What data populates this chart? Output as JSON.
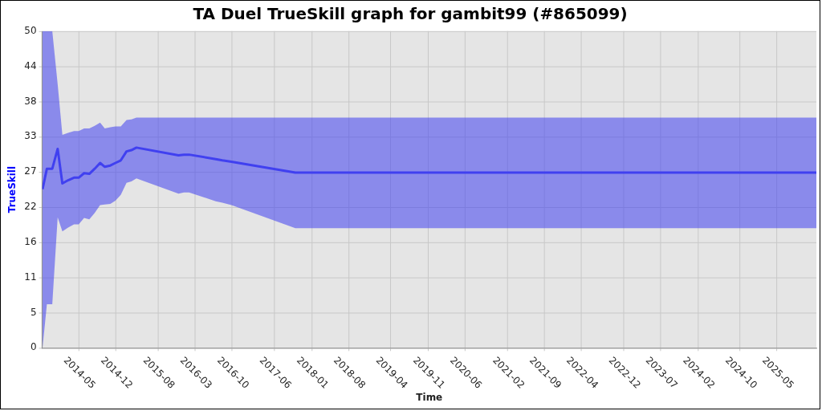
{
  "chart_data": {
    "type": "line",
    "title": "TA Duel TrueSkill graph for gambit99 (#865099)",
    "xlabel": "Time",
    "ylabel": "TrueSkill",
    "x": [
      "2013-10-06",
      "2013-10-31",
      "2013-12-01",
      "2014-01-01",
      "2014-01-28",
      "2014-03-02",
      "2014-04-05",
      "2014-05-02",
      "2014-06-02",
      "2014-07-02",
      "2014-08-02",
      "2014-09-02",
      "2014-09-29",
      "2014-10-31",
      "2014-11-29",
      "2014-12-30",
      "2015-02-01",
      "2015-03-01",
      "2015-03-30",
      "2015-11-27",
      "2015-12-28",
      "2016-01-27",
      "2016-06-28",
      "2016-08-05",
      "2016-09-27",
      "2017-09-29",
      "2025-12-13"
    ],
    "series": [
      {
        "color": "#4040f0",
        "values": [
          24.8,
          28.0,
          28.0,
          31.1,
          25.7,
          26.2,
          26.6,
          26.6,
          27.3,
          27.2,
          28.0,
          28.9,
          28.3,
          28.5,
          28.9,
          29.3,
          30.7,
          30.9,
          31.3,
          30.1,
          30.2,
          30.2,
          29.5,
          29.3,
          29.1,
          27.4,
          27.4
        ],
        "upper": [
          49.5,
          49.5,
          49.5,
          41.2,
          33.3,
          33.6,
          33.9,
          33.9,
          34.3,
          34.3,
          34.7,
          35.2,
          34.3,
          34.5,
          34.6,
          34.6,
          35.6,
          35.7,
          36.0,
          36.0,
          36.0,
          36.0,
          36.0,
          36.0,
          36.0,
          36.0,
          36.0
        ],
        "lower": [
          0,
          6.8,
          6.8,
          20.4,
          18.2,
          18.8,
          19.3,
          19.3,
          20.3,
          20.1,
          21.1,
          22.3,
          22.4,
          22.5,
          23.0,
          23.9,
          25.8,
          26.0,
          26.5,
          24.1,
          24.3,
          24.3,
          22.9,
          22.7,
          22.3,
          18.7,
          18.7
        ]
      }
    ],
    "xlim": [
      "2013-10-04",
      "2025-12-13"
    ],
    "xticks": [
      "2014-05",
      "2014-12",
      "2015-08",
      "2016-03",
      "2016-10",
      "2017-06",
      "2018-01",
      "2018-08",
      "2019-04",
      "2019-11",
      "2020-06",
      "2021-02",
      "2021-09",
      "2022-04",
      "2022-12",
      "2023-07",
      "2024-02",
      "2024-10",
      "2025-05"
    ],
    "ylim": [
      0,
      49.5
    ],
    "yticks": [
      0,
      {
        "value": 5.5,
        "label": "5"
      },
      11,
      {
        "value": 16.5,
        "label": "16"
      },
      22,
      {
        "value": 27.5,
        "label": "27"
      },
      33,
      {
        "value": 38.5,
        "label": "38"
      },
      44,
      {
        "value": 49.5,
        "label": "50"
      }
    ],
    "grid": true,
    "legend": false
  }
}
